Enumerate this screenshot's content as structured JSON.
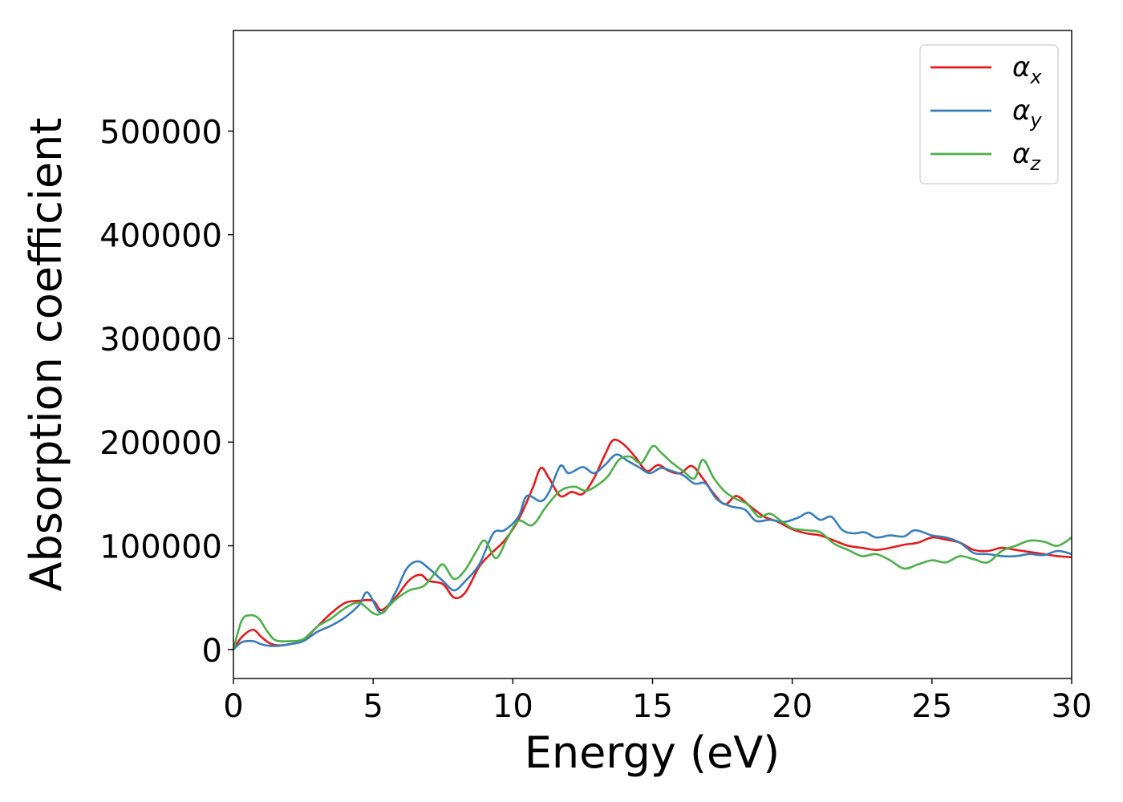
{
  "chart_data": {
    "type": "line",
    "xlabel": "Energy (eV)",
    "ylabel": "Absorption coefficient",
    "xlim": [
      0,
      30
    ],
    "ylim": [
      -28000,
      597000
    ],
    "x_ticks": [
      0,
      5,
      10,
      15,
      20,
      25,
      30
    ],
    "y_ticks": [
      0,
      100000,
      200000,
      300000,
      400000,
      500000
    ],
    "grid": false,
    "legend": {
      "placement": "top-right",
      "entries": [
        {
          "symbol": "α",
          "subscript": "x"
        },
        {
          "symbol": "α",
          "subscript": "y"
        },
        {
          "symbol": "α",
          "subscript": "z"
        }
      ]
    },
    "series": [
      {
        "label": "αx",
        "color": "#e41a1c",
        "x": [
          0,
          0.3,
          0.7,
          1.0,
          1.3,
          1.6,
          2.0,
          2.5,
          3.0,
          3.5,
          4.0,
          4.5,
          5.0,
          5.3,
          5.8,
          6.3,
          6.7,
          7.0,
          7.5,
          7.9,
          8.3,
          8.8,
          9.2,
          9.7,
          10.2,
          10.7,
          11.0,
          11.3,
          11.7,
          12.1,
          12.5,
          12.9,
          13.3,
          13.6,
          14.0,
          14.4,
          14.8,
          15.2,
          15.6,
          16.0,
          16.4,
          16.8,
          17.2,
          17.6,
          18.0,
          18.5,
          19.0,
          19.5,
          20.0,
          20.5,
          21.0,
          21.5,
          22.0,
          22.5,
          23.0,
          23.5,
          24.0,
          24.5,
          25.0,
          25.5,
          26.0,
          26.5,
          27.0,
          27.5,
          28.0,
          28.5,
          29.0,
          29.5,
          30.0
        ],
        "values": [
          0,
          12000,
          19000,
          12000,
          6000,
          4000,
          5000,
          9000,
          22000,
          35000,
          45000,
          47000,
          47000,
          38000,
          50000,
          67000,
          72000,
          66000,
          63000,
          50000,
          55000,
          80000,
          92000,
          105000,
          125000,
          155000,
          175000,
          165000,
          148000,
          152000,
          150000,
          165000,
          188000,
          202000,
          197000,
          185000,
          172000,
          178000,
          172000,
          170000,
          177000,
          165000,
          150000,
          140000,
          148000,
          138000,
          128000,
          123000,
          116000,
          112000,
          110000,
          105000,
          100000,
          98000,
          96000,
          98000,
          101000,
          103000,
          108000,
          106000,
          103000,
          96000,
          95000,
          98000,
          96000,
          94000,
          92000,
          90000,
          89000
        ]
      },
      {
        "label": "αy",
        "color": "#377eb8",
        "x": [
          0,
          0.3,
          0.7,
          1.0,
          1.3,
          1.6,
          2.0,
          2.5,
          3.0,
          3.5,
          4.0,
          4.5,
          4.8,
          5.3,
          5.8,
          6.2,
          6.6,
          7.0,
          7.5,
          7.9,
          8.3,
          8.8,
          9.3,
          9.7,
          10.2,
          10.5,
          11.0,
          11.3,
          11.7,
          12.0,
          12.5,
          12.9,
          13.3,
          13.7,
          14.1,
          14.5,
          14.9,
          15.3,
          15.7,
          16.1,
          16.5,
          16.9,
          17.3,
          17.8,
          18.3,
          18.7,
          19.2,
          19.7,
          20.2,
          20.6,
          21.0,
          21.4,
          21.8,
          22.2,
          22.6,
          23.0,
          23.5,
          24.0,
          24.4,
          25.0,
          25.5,
          26.0,
          26.5,
          27.0,
          27.5,
          28.0,
          28.5,
          29.0,
          29.5,
          30.0
        ],
        "values": [
          0,
          7000,
          8000,
          5000,
          3500,
          3500,
          5000,
          8000,
          17000,
          23000,
          31000,
          43000,
          55000,
          35000,
          55000,
          78000,
          85000,
          78000,
          66000,
          57000,
          66000,
          82000,
          112000,
          115000,
          128000,
          148000,
          143000,
          152000,
          177000,
          170000,
          176000,
          170000,
          178000,
          188000,
          182000,
          176000,
          170000,
          175000,
          172000,
          168000,
          160000,
          160000,
          145000,
          138000,
          135000,
          124000,
          125000,
          123000,
          127000,
          132000,
          125000,
          128000,
          115000,
          112000,
          113000,
          108000,
          110000,
          109000,
          115000,
          110000,
          108000,
          103000,
          93000,
          92000,
          90000,
          90000,
          92000,
          91000,
          95000,
          92000
        ]
      },
      {
        "label": "αz",
        "color": "#4daf4a",
        "x": [
          0,
          0.3,
          0.6,
          0.9,
          1.2,
          1.5,
          2.0,
          2.5,
          3.0,
          3.5,
          4.0,
          4.5,
          5.0,
          5.3,
          5.8,
          6.3,
          6.8,
          7.2,
          7.5,
          7.9,
          8.3,
          8.7,
          9.0,
          9.4,
          9.8,
          10.2,
          10.7,
          11.2,
          11.7,
          12.2,
          12.6,
          13.0,
          13.4,
          13.8,
          14.2,
          14.6,
          15.0,
          15.3,
          15.7,
          16.1,
          16.5,
          16.8,
          17.2,
          17.6,
          18.0,
          18.4,
          18.8,
          19.2,
          19.6,
          20.0,
          20.5,
          21.0,
          21.5,
          22.0,
          22.5,
          23.0,
          23.5,
          24.0,
          24.5,
          25.0,
          25.5,
          26.0,
          26.5,
          27.0,
          27.5,
          28.0,
          28.5,
          29.0,
          29.5,
          30.0
        ],
        "values": [
          0,
          28000,
          33000,
          30000,
          18000,
          9000,
          8000,
          10000,
          22000,
          30000,
          40000,
          45000,
          35000,
          35000,
          48000,
          57000,
          61000,
          73000,
          82000,
          68000,
          77000,
          95000,
          105000,
          88000,
          107000,
          124000,
          120000,
          138000,
          153000,
          157000,
          153000,
          158000,
          167000,
          183000,
          186000,
          180000,
          196000,
          190000,
          180000,
          172000,
          165000,
          183000,
          165000,
          152000,
          145000,
          140000,
          128000,
          131000,
          124000,
          117000,
          115000,
          113000,
          102000,
          96000,
          90000,
          92000,
          86000,
          78000,
          82000,
          86000,
          84000,
          90000,
          87000,
          84000,
          95000,
          100000,
          105000,
          104000,
          100000,
          108000
        ]
      }
    ]
  }
}
